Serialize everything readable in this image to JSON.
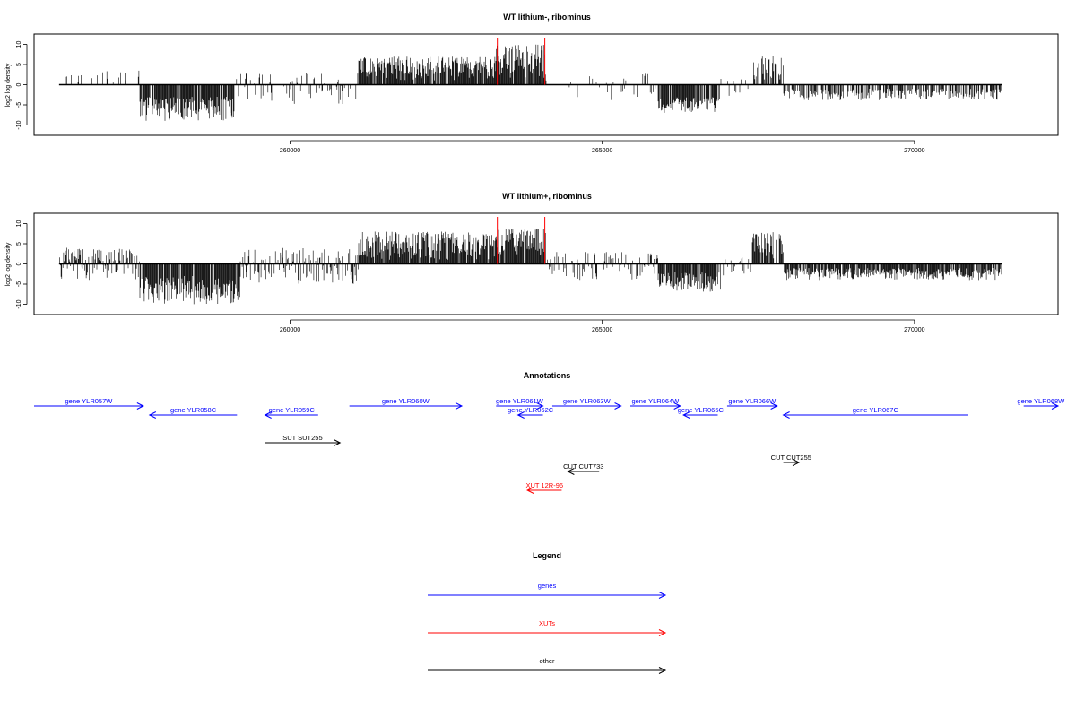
{
  "chart_data": [
    {
      "type": "bar",
      "title": "WT lithium-, ribominus",
      "ylabel": "log2 log density",
      "xlim": [
        255900,
        272300
      ],
      "ylim": [
        -11,
        11
      ],
      "y_ticks": [
        "10",
        "5",
        "0",
        "-5",
        "-10"
      ],
      "y_tick_values": [
        10,
        5,
        0,
        -5,
        -10
      ],
      "x_ticks": [
        "260000",
        "265000",
        "270000"
      ],
      "x_tick_values": [
        260000,
        265000,
        270000
      ],
      "data_range": [
        256300,
        271400
      ],
      "highlight_lines": [
        263320,
        264080
      ],
      "regions": [
        {
          "start": 256300,
          "end": 257600,
          "min": 0,
          "max": 3.5,
          "density": 0.15
        },
        {
          "start": 257600,
          "end": 259100,
          "min": -9,
          "max": -3,
          "density": 0.9
        },
        {
          "start": 259100,
          "end": 261100,
          "min": -5,
          "max": 3,
          "density": 0.35
        },
        {
          "start": 261100,
          "end": 263300,
          "min": 1,
          "max": 7,
          "density": 0.95
        },
        {
          "start": 263300,
          "end": 264100,
          "min": 1,
          "max": 10,
          "density": 0.95
        },
        {
          "start": 264100,
          "end": 265900,
          "min": -4,
          "max": 3,
          "density": 0.2
        },
        {
          "start": 265900,
          "end": 266900,
          "min": -7,
          "max": -3,
          "density": 0.8
        },
        {
          "start": 266900,
          "end": 267400,
          "min": -3,
          "max": 2,
          "density": 0.15
        },
        {
          "start": 267400,
          "end": 267900,
          "min": 1,
          "max": 7,
          "density": 0.7
        },
        {
          "start": 267900,
          "end": 271400,
          "min": -4,
          "max": -1,
          "density": 0.6
        }
      ]
    },
    {
      "type": "bar",
      "title": "WT lithium+, ribominus",
      "ylabel": "log2 log density",
      "xlim": [
        255900,
        272300
      ],
      "ylim": [
        -11,
        11
      ],
      "y_ticks": [
        "10",
        "5",
        "0",
        "-5",
        "-10"
      ],
      "y_tick_values": [
        10,
        5,
        0,
        -5,
        -10
      ],
      "x_ticks": [
        "260000",
        "265000",
        "270000"
      ],
      "x_tick_values": [
        260000,
        265000,
        270000
      ],
      "data_range": [
        256300,
        271400
      ],
      "highlight_lines": [
        263320,
        264080
      ],
      "regions": [
        {
          "start": 256300,
          "end": 257600,
          "min": -4,
          "max": 4,
          "density": 0.8
        },
        {
          "start": 257600,
          "end": 259200,
          "min": -10,
          "max": -3,
          "density": 0.95
        },
        {
          "start": 259200,
          "end": 261100,
          "min": -5,
          "max": 4,
          "density": 0.7
        },
        {
          "start": 261100,
          "end": 263300,
          "min": 1,
          "max": 8,
          "density": 0.95
        },
        {
          "start": 263300,
          "end": 264100,
          "min": 2,
          "max": 9,
          "density": 0.95
        },
        {
          "start": 264100,
          "end": 265900,
          "min": -4,
          "max": 3,
          "density": 0.5
        },
        {
          "start": 265900,
          "end": 266900,
          "min": -7,
          "max": -2,
          "density": 0.9
        },
        {
          "start": 266900,
          "end": 267400,
          "min": -3,
          "max": 2,
          "density": 0.4
        },
        {
          "start": 267400,
          "end": 267900,
          "min": 1,
          "max": 8,
          "density": 0.8
        },
        {
          "start": 267900,
          "end": 271400,
          "min": -4,
          "max": -1,
          "density": 0.9
        }
      ]
    }
  ],
  "annotations": {
    "title": "Annotations",
    "features": [
      {
        "label": "gene YLR057W",
        "start": 255900,
        "end": 257650,
        "dir": "+",
        "color": "#0000ff",
        "row": 0
      },
      {
        "label": "gene YLR058C",
        "start": 257750,
        "end": 259150,
        "dir": "-",
        "color": "#0000ff",
        "row": 1
      },
      {
        "label": "gene YLR059C",
        "start": 259600,
        "end": 260450,
        "dir": "-",
        "color": "#0000ff",
        "row": 1
      },
      {
        "label": "gene YLR060W",
        "start": 260950,
        "end": 262750,
        "dir": "+",
        "color": "#0000ff",
        "row": 0
      },
      {
        "label": "gene YLR061W",
        "start": 263300,
        "end": 264050,
        "dir": "+",
        "color": "#0000ff",
        "row": 0
      },
      {
        "label": "gene YLR062C",
        "start": 263650,
        "end": 264050,
        "dir": "-",
        "color": "#0000ff",
        "row": 1
      },
      {
        "label": "gene YLR063W",
        "start": 264200,
        "end": 265300,
        "dir": "+",
        "color": "#0000ff",
        "row": 0
      },
      {
        "label": "gene YLR064W",
        "start": 265450,
        "end": 266250,
        "dir": "+",
        "color": "#0000ff",
        "row": 0
      },
      {
        "label": "gene YLR065C",
        "start": 266300,
        "end": 266850,
        "dir": "-",
        "color": "#0000ff",
        "row": 1
      },
      {
        "label": "gene YLR066W",
        "start": 267000,
        "end": 267800,
        "dir": "+",
        "color": "#0000ff",
        "row": 0
      },
      {
        "label": "gene YLR067C",
        "start": 267900,
        "end": 270850,
        "dir": "-",
        "color": "#0000ff",
        "row": 1
      },
      {
        "label": "gene YLR068W",
        "start": 271750,
        "end": 272300,
        "dir": "+",
        "color": "#0000ff",
        "row": 0
      },
      {
        "label": "SUT SUT255",
        "start": 259600,
        "end": 260800,
        "dir": "+",
        "color": "#000000",
        "row": 3
      },
      {
        "label": "CUT CUT733",
        "start": 264450,
        "end": 264950,
        "dir": "-",
        "color": "#000000",
        "row": 5
      },
      {
        "label": "CUT CUT255",
        "start": 267900,
        "end": 268150,
        "dir": "+",
        "color": "#000000",
        "row": 4
      },
      {
        "label": "XUT 12R-96",
        "start": 263800,
        "end": 264350,
        "dir": "-",
        "color": "#ff0000",
        "row": 7
      }
    ]
  },
  "legend": {
    "title": "Legend",
    "items": [
      {
        "label": "genes",
        "color": "#0000ff"
      },
      {
        "label": "XUTs",
        "color": "#ff0000"
      },
      {
        "label": "other",
        "color": "#000000"
      }
    ]
  }
}
